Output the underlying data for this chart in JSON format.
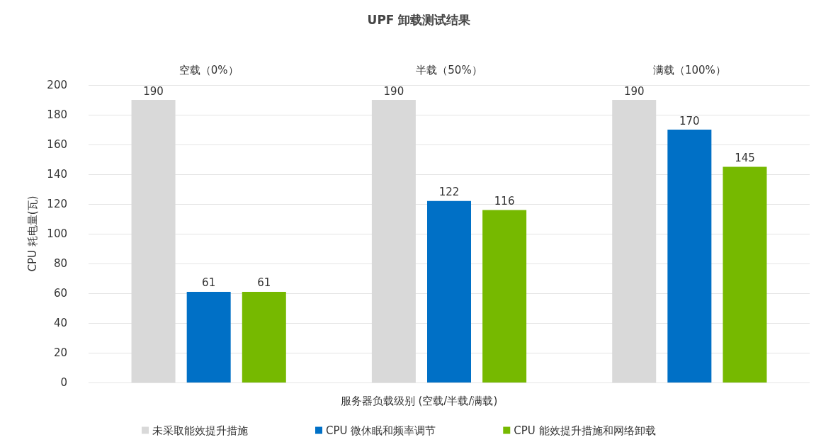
{
  "chart_data": {
    "type": "bar",
    "title": "UPF 卸载测试结果",
    "xlabel": "服务器负载级别 (空载/半载/满载)",
    "ylabel": "CPU 耗电量(瓦)",
    "categories": [
      "空载（0%）",
      "半载（50%）",
      "满载（100%）"
    ],
    "series": [
      {
        "name": "未采取能效提升措施",
        "color": "#d9d9d9",
        "values": [
          190,
          190,
          190
        ]
      },
      {
        "name": "CPU 微休眠和频率调节",
        "color": "#0070c6",
        "values": [
          61,
          122,
          170
        ]
      },
      {
        "name": "CPU 能效提升措施和网络卸载",
        "color": "#76b900",
        "values": [
          61,
          116,
          145
        ]
      }
    ],
    "ylim": [
      0,
      200
    ],
    "yticks": [
      0,
      20,
      40,
      60,
      80,
      100,
      120,
      140,
      160,
      180,
      200
    ],
    "grid": "y",
    "legend": "bottom left",
    "data_labels": true
  }
}
